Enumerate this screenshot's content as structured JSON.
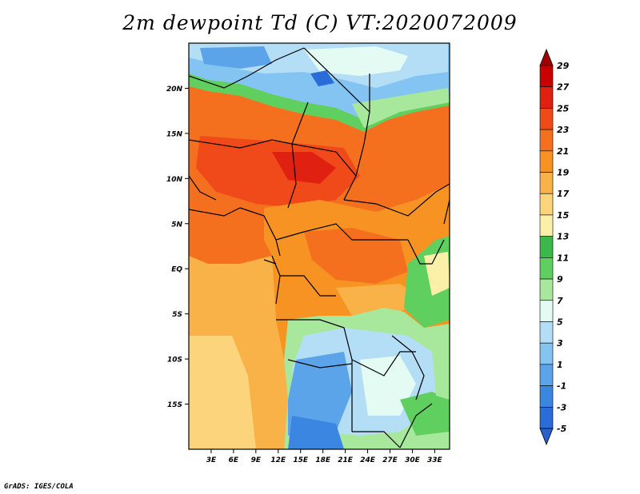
{
  "title": "2m dewpoint Td (C) VT:2020072009",
  "credit": "GrADS: IGES/COLA",
  "map": {
    "lat_ticks": [
      "20N",
      "15N",
      "10N",
      "5N",
      "EQ",
      "5S",
      "10S",
      "15S"
    ],
    "lon_ticks": [
      "3E",
      "6E",
      "9E",
      "12E",
      "15E",
      "18E",
      "21E",
      "24E",
      "27E",
      "30E",
      "33E"
    ],
    "lon_range": [
      0,
      35
    ],
    "lat_range": [
      -20,
      25
    ]
  },
  "colorbar": {
    "labels": [
      "29",
      "27",
      "25",
      "23",
      "21",
      "19",
      "17",
      "15",
      "13",
      "11",
      "9",
      "7",
      "5",
      "3",
      "1",
      "-1",
      "-3",
      "-5"
    ],
    "colors": [
      "#a00000",
      "#c80000",
      "#e02010",
      "#f04a1a",
      "#f5701e",
      "#f79322",
      "#f9b248",
      "#fbd47c",
      "#fcf0a8",
      "#3cb84a",
      "#5fd060",
      "#a8e89c",
      "#e4fbf4",
      "#b4def5",
      "#84c4f2",
      "#5ca4ea",
      "#3a86e0",
      "#2a6cd8",
      "#2a60d0"
    ]
  }
}
